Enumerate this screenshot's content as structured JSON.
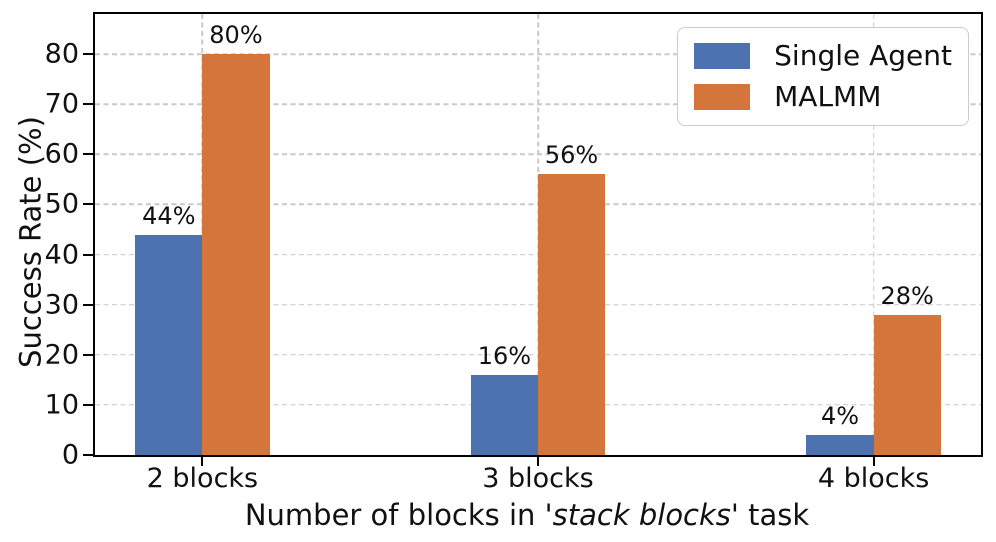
{
  "chart_data": {
    "type": "bar",
    "title": "",
    "categories": [
      "2 blocks",
      "3 blocks",
      "4 blocks"
    ],
    "series": [
      {
        "name": "Single Agent",
        "color": "#4C72B0",
        "values": [
          44,
          16,
          4
        ],
        "labels": [
          "44%",
          "16%",
          "4%"
        ]
      },
      {
        "name": "MALMM",
        "color": "#D4763B",
        "values": [
          80,
          56,
          28
        ],
        "labels": [
          "80%",
          "56%",
          "28%"
        ]
      }
    ],
    "ylabel": "Success Rate (%)",
    "xlabel": "Number of blocks in 'stack blocks' task",
    "xlabel_parts": {
      "prefix": "Number of blocks in '",
      "italic": "stack blocks",
      "suffix": "' task"
    },
    "ylim": [
      0,
      88
    ],
    "yticks": [
      0,
      10,
      20,
      30,
      40,
      50,
      60,
      70,
      80
    ],
    "grid": {
      "horizontal": true,
      "vertical": true,
      "style": "dashed",
      "color": "#c9c9c9"
    },
    "legend": {
      "position": "upper right",
      "entries": [
        "Single Agent",
        "MALMM"
      ]
    },
    "axis_color": "#000000",
    "bar_colors": {
      "single_agent": "#4C72B0",
      "malmm": "#D4763B"
    }
  }
}
